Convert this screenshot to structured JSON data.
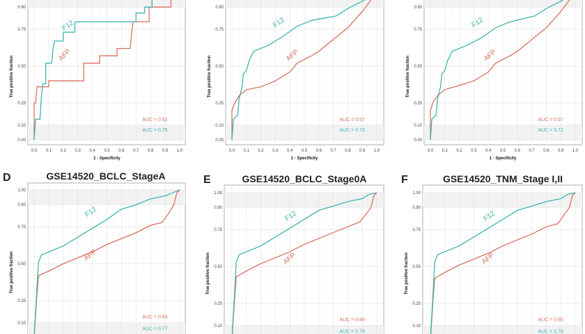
{
  "colors": {
    "AFP": "#d9705f",
    "F12": "#3eb3b0"
  },
  "chart_data": [
    {
      "type": "line",
      "panel_letter": "",
      "title": "",
      "xlabel": "1 - Specificity",
      "ylabel": "True positive fraction",
      "xticks": [
        "0.0",
        "0.1",
        "0.2",
        "0.3",
        "0.4",
        "0.5",
        "0.6",
        "0.7",
        "0.8",
        "0.9",
        "1.0"
      ],
      "yticks": [
        "0.00",
        "0.10",
        "0.25",
        "0.50",
        "0.75",
        "0.90"
      ],
      "xlim": [
        0,
        1
      ],
      "ylim": [
        0,
        1
      ],
      "grid": true,
      "series": [
        {
          "name": "AFP",
          "auc_label": "AUC = 0.62",
          "points": [
            [
              0,
              0
            ],
            [
              0,
              0.25
            ],
            [
              0.01,
              0.25
            ],
            [
              0.02,
              0.36
            ],
            [
              0.1,
              0.36
            ],
            [
              0.1,
              0.4
            ],
            [
              0.34,
              0.4
            ],
            [
              0.34,
              0.52
            ],
            [
              0.45,
              0.52
            ],
            [
              0.45,
              0.57
            ],
            [
              0.57,
              0.57
            ],
            [
              0.57,
              0.62
            ],
            [
              0.66,
              0.62
            ],
            [
              0.67,
              0.72
            ],
            [
              0.68,
              0.8
            ],
            [
              0.79,
              0.8
            ],
            [
              0.79,
              0.9
            ],
            [
              0.94,
              0.9
            ],
            [
              0.94,
              1
            ],
            [
              1,
              1
            ]
          ]
        },
        {
          "name": "F12",
          "auc_label": "AUC = 0.76",
          "points": [
            [
              0,
              0
            ],
            [
              0.01,
              0.14
            ],
            [
              0.04,
              0.14
            ],
            [
              0.05,
              0.3
            ],
            [
              0.06,
              0.38
            ],
            [
              0.08,
              0.38
            ],
            [
              0.08,
              0.52
            ],
            [
              0.12,
              0.52
            ],
            [
              0.13,
              0.62
            ],
            [
              0.14,
              0.67
            ],
            [
              0.2,
              0.67
            ],
            [
              0.2,
              0.73
            ],
            [
              0.28,
              0.73
            ],
            [
              0.28,
              0.8
            ],
            [
              0.7,
              0.8
            ],
            [
              0.7,
              0.86
            ],
            [
              0.76,
              0.86
            ],
            [
              0.76,
              0.9
            ],
            [
              0.81,
              0.9
            ],
            [
              0.81,
              1
            ],
            [
              1,
              1
            ]
          ]
        }
      ]
    },
    {
      "type": "line",
      "panel_letter": "",
      "title": "",
      "xlabel": "1 - Specificity",
      "ylabel": "True positive fraction",
      "xticks": [
        "0.0",
        "0.1",
        "0.2",
        "0.3",
        "0.4",
        "0.5",
        "0.6",
        "0.7",
        "0.8",
        "0.9",
        "1.0"
      ],
      "yticks": [
        "0.00",
        "0.10",
        "0.25",
        "0.50",
        "0.75",
        "0.90"
      ],
      "xlim": [
        0,
        1
      ],
      "ylim": [
        0,
        1
      ],
      "grid": true,
      "series": [
        {
          "name": "AFP",
          "auc_label": "AUC = 0.57",
          "points": [
            [
              0,
              0
            ],
            [
              0,
              0.2
            ],
            [
              0.02,
              0.25
            ],
            [
              0.05,
              0.3
            ],
            [
              0.1,
              0.34
            ],
            [
              0.2,
              0.36
            ],
            [
              0.3,
              0.4
            ],
            [
              0.4,
              0.46
            ],
            [
              0.45,
              0.52
            ],
            [
              0.55,
              0.57
            ],
            [
              0.6,
              0.6
            ],
            [
              0.7,
              0.68
            ],
            [
              0.8,
              0.76
            ],
            [
              0.9,
              0.87
            ],
            [
              1,
              1
            ]
          ]
        },
        {
          "name": "F12",
          "auc_label": "AUC = 0.73",
          "points": [
            [
              0,
              0
            ],
            [
              0.01,
              0.14
            ],
            [
              0.04,
              0.17
            ],
            [
              0.05,
              0.28
            ],
            [
              0.07,
              0.36
            ],
            [
              0.08,
              0.45
            ],
            [
              0.1,
              0.47
            ],
            [
              0.12,
              0.54
            ],
            [
              0.15,
              0.6
            ],
            [
              0.25,
              0.64
            ],
            [
              0.35,
              0.7
            ],
            [
              0.45,
              0.77
            ],
            [
              0.55,
              0.81
            ],
            [
              0.72,
              0.84
            ],
            [
              0.8,
              0.89
            ],
            [
              0.9,
              0.94
            ],
            [
              1,
              1
            ]
          ]
        }
      ]
    },
    {
      "type": "line",
      "panel_letter": "",
      "title": "",
      "xlabel": "1 - Specificity",
      "ylabel": "True positive fraction",
      "xticks": [
        "0.0",
        "0.1",
        "0.2",
        "0.3",
        "0.4",
        "0.5",
        "0.6",
        "0.7",
        "0.8",
        "0.9",
        "1.0"
      ],
      "yticks": [
        "0.00",
        "0.10",
        "0.25",
        "0.50",
        "0.75",
        "0.90"
      ],
      "xlim": [
        0,
        1
      ],
      "ylim": [
        0,
        1
      ],
      "grid": true,
      "series": [
        {
          "name": "AFP",
          "auc_label": "AUC = 0.57",
          "points": [
            [
              0,
              0
            ],
            [
              0,
              0.2
            ],
            [
              0.02,
              0.26
            ],
            [
              0.05,
              0.3
            ],
            [
              0.1,
              0.34
            ],
            [
              0.2,
              0.37
            ],
            [
              0.3,
              0.4
            ],
            [
              0.4,
              0.46
            ],
            [
              0.45,
              0.52
            ],
            [
              0.55,
              0.57
            ],
            [
              0.6,
              0.6
            ],
            [
              0.7,
              0.68
            ],
            [
              0.8,
              0.76
            ],
            [
              0.9,
              0.87
            ],
            [
              1,
              1
            ]
          ]
        },
        {
          "name": "F12",
          "auc_label": "AUC = 0.72",
          "points": [
            [
              0,
              0
            ],
            [
              0.01,
              0.14
            ],
            [
              0.04,
              0.17
            ],
            [
              0.05,
              0.28
            ],
            [
              0.07,
              0.36
            ],
            [
              0.08,
              0.45
            ],
            [
              0.1,
              0.47
            ],
            [
              0.12,
              0.54
            ],
            [
              0.15,
              0.6
            ],
            [
              0.25,
              0.64
            ],
            [
              0.35,
              0.69
            ],
            [
              0.45,
              0.76
            ],
            [
              0.55,
              0.8
            ],
            [
              0.72,
              0.84
            ],
            [
              0.8,
              0.89
            ],
            [
              0.9,
              0.94
            ],
            [
              1,
              1
            ]
          ]
        }
      ]
    },
    {
      "type": "line",
      "panel_letter": "D",
      "title": "GSE14520_BCLC_StageA",
      "xlabel": "",
      "ylabel": "True positive fraction",
      "yticks": [
        "0.10",
        "0.25",
        "0.50",
        "0.75",
        "0.90",
        "1.00"
      ],
      "xlim": [
        0,
        1
      ],
      "ylim": [
        0,
        1
      ],
      "grid": true,
      "series": [
        {
          "name": "AFP",
          "auc_label": "AUC = 0.64",
          "points": [
            [
              0,
              0
            ],
            [
              0.02,
              0.3
            ],
            [
              0.03,
              0.42
            ],
            [
              0.1,
              0.45
            ],
            [
              0.2,
              0.5
            ],
            [
              0.3,
              0.54
            ],
            [
              0.4,
              0.58
            ],
            [
              0.5,
              0.63
            ],
            [
              0.6,
              0.67
            ],
            [
              0.7,
              0.71
            ],
            [
              0.8,
              0.76
            ],
            [
              0.88,
              0.78
            ],
            [
              0.93,
              0.85
            ],
            [
              0.96,
              0.9
            ],
            [
              0.98,
              0.98
            ],
            [
              1,
              1
            ]
          ]
        },
        {
          "name": "F12",
          "auc_label": "AUC = 0.77",
          "points": [
            [
              0,
              0
            ],
            [
              0.02,
              0.35
            ],
            [
              0.03,
              0.51
            ],
            [
              0.05,
              0.56
            ],
            [
              0.1,
              0.58
            ],
            [
              0.2,
              0.62
            ],
            [
              0.3,
              0.68
            ],
            [
              0.4,
              0.74
            ],
            [
              0.5,
              0.8
            ],
            [
              0.6,
              0.87
            ],
            [
              0.7,
              0.9
            ],
            [
              0.8,
              0.94
            ],
            [
              0.9,
              0.96
            ],
            [
              0.95,
              0.98
            ],
            [
              1,
              1
            ]
          ]
        }
      ]
    },
    {
      "type": "line",
      "panel_letter": "E",
      "title": "GSE14520_BCLC_Stage0A",
      "xlabel": "",
      "ylabel": "True positive fraction",
      "yticks": [
        "0.10",
        "0.25",
        "0.50",
        "0.75",
        "0.90",
        "1.00"
      ],
      "xlim": [
        0,
        1
      ],
      "ylim": [
        0,
        1
      ],
      "grid": true,
      "series": [
        {
          "name": "AFP",
          "auc_label": "AUC = 0.66",
          "points": [
            [
              0,
              0
            ],
            [
              0.02,
              0.3
            ],
            [
              0.03,
              0.43
            ],
            [
              0.1,
              0.47
            ],
            [
              0.2,
              0.52
            ],
            [
              0.3,
              0.56
            ],
            [
              0.4,
              0.6
            ],
            [
              0.5,
              0.65
            ],
            [
              0.6,
              0.69
            ],
            [
              0.7,
              0.73
            ],
            [
              0.8,
              0.77
            ],
            [
              0.88,
              0.8
            ],
            [
              0.93,
              0.86
            ],
            [
              0.96,
              0.9
            ],
            [
              0.98,
              0.98
            ],
            [
              1,
              1
            ]
          ]
        },
        {
          "name": "F12",
          "auc_label": "AUC = 0.79",
          "points": [
            [
              0,
              0
            ],
            [
              0.02,
              0.35
            ],
            [
              0.03,
              0.53
            ],
            [
              0.05,
              0.58
            ],
            [
              0.1,
              0.6
            ],
            [
              0.2,
              0.64
            ],
            [
              0.3,
              0.7
            ],
            [
              0.4,
              0.76
            ],
            [
              0.5,
              0.82
            ],
            [
              0.6,
              0.88
            ],
            [
              0.7,
              0.91
            ],
            [
              0.8,
              0.94
            ],
            [
              0.9,
              0.96
            ],
            [
              0.95,
              0.99
            ],
            [
              1,
              1
            ]
          ]
        }
      ]
    },
    {
      "type": "line",
      "panel_letter": "F",
      "title": "GSE14520_TNM_Stage I,II",
      "xlabel": "",
      "ylabel": "True positive fraction",
      "yticks": [
        "0.10",
        "0.25",
        "0.50",
        "0.75",
        "0.90",
        "1.00"
      ],
      "xlim": [
        0,
        1
      ],
      "ylim": [
        0,
        1
      ],
      "grid": true,
      "series": [
        {
          "name": "AFP",
          "auc_label": "AUC = 0.65",
          "points": [
            [
              0,
              0
            ],
            [
              0.02,
              0.3
            ],
            [
              0.03,
              0.42
            ],
            [
              0.1,
              0.46
            ],
            [
              0.2,
              0.51
            ],
            [
              0.3,
              0.55
            ],
            [
              0.4,
              0.59
            ],
            [
              0.5,
              0.64
            ],
            [
              0.6,
              0.68
            ],
            [
              0.7,
              0.72
            ],
            [
              0.8,
              0.77
            ],
            [
              0.88,
              0.79
            ],
            [
              0.93,
              0.86
            ],
            [
              0.96,
              0.9
            ],
            [
              0.98,
              0.98
            ],
            [
              1,
              1
            ]
          ]
        },
        {
          "name": "F12",
          "auc_label": "AUC = 0.79",
          "points": [
            [
              0,
              0
            ],
            [
              0.02,
              0.35
            ],
            [
              0.03,
              0.53
            ],
            [
              0.05,
              0.58
            ],
            [
              0.1,
              0.6
            ],
            [
              0.2,
              0.64
            ],
            [
              0.3,
              0.7
            ],
            [
              0.4,
              0.76
            ],
            [
              0.5,
              0.82
            ],
            [
              0.6,
              0.88
            ],
            [
              0.7,
              0.91
            ],
            [
              0.8,
              0.94
            ],
            [
              0.9,
              0.96
            ],
            [
              0.95,
              0.99
            ],
            [
              1,
              1
            ]
          ]
        }
      ]
    }
  ]
}
